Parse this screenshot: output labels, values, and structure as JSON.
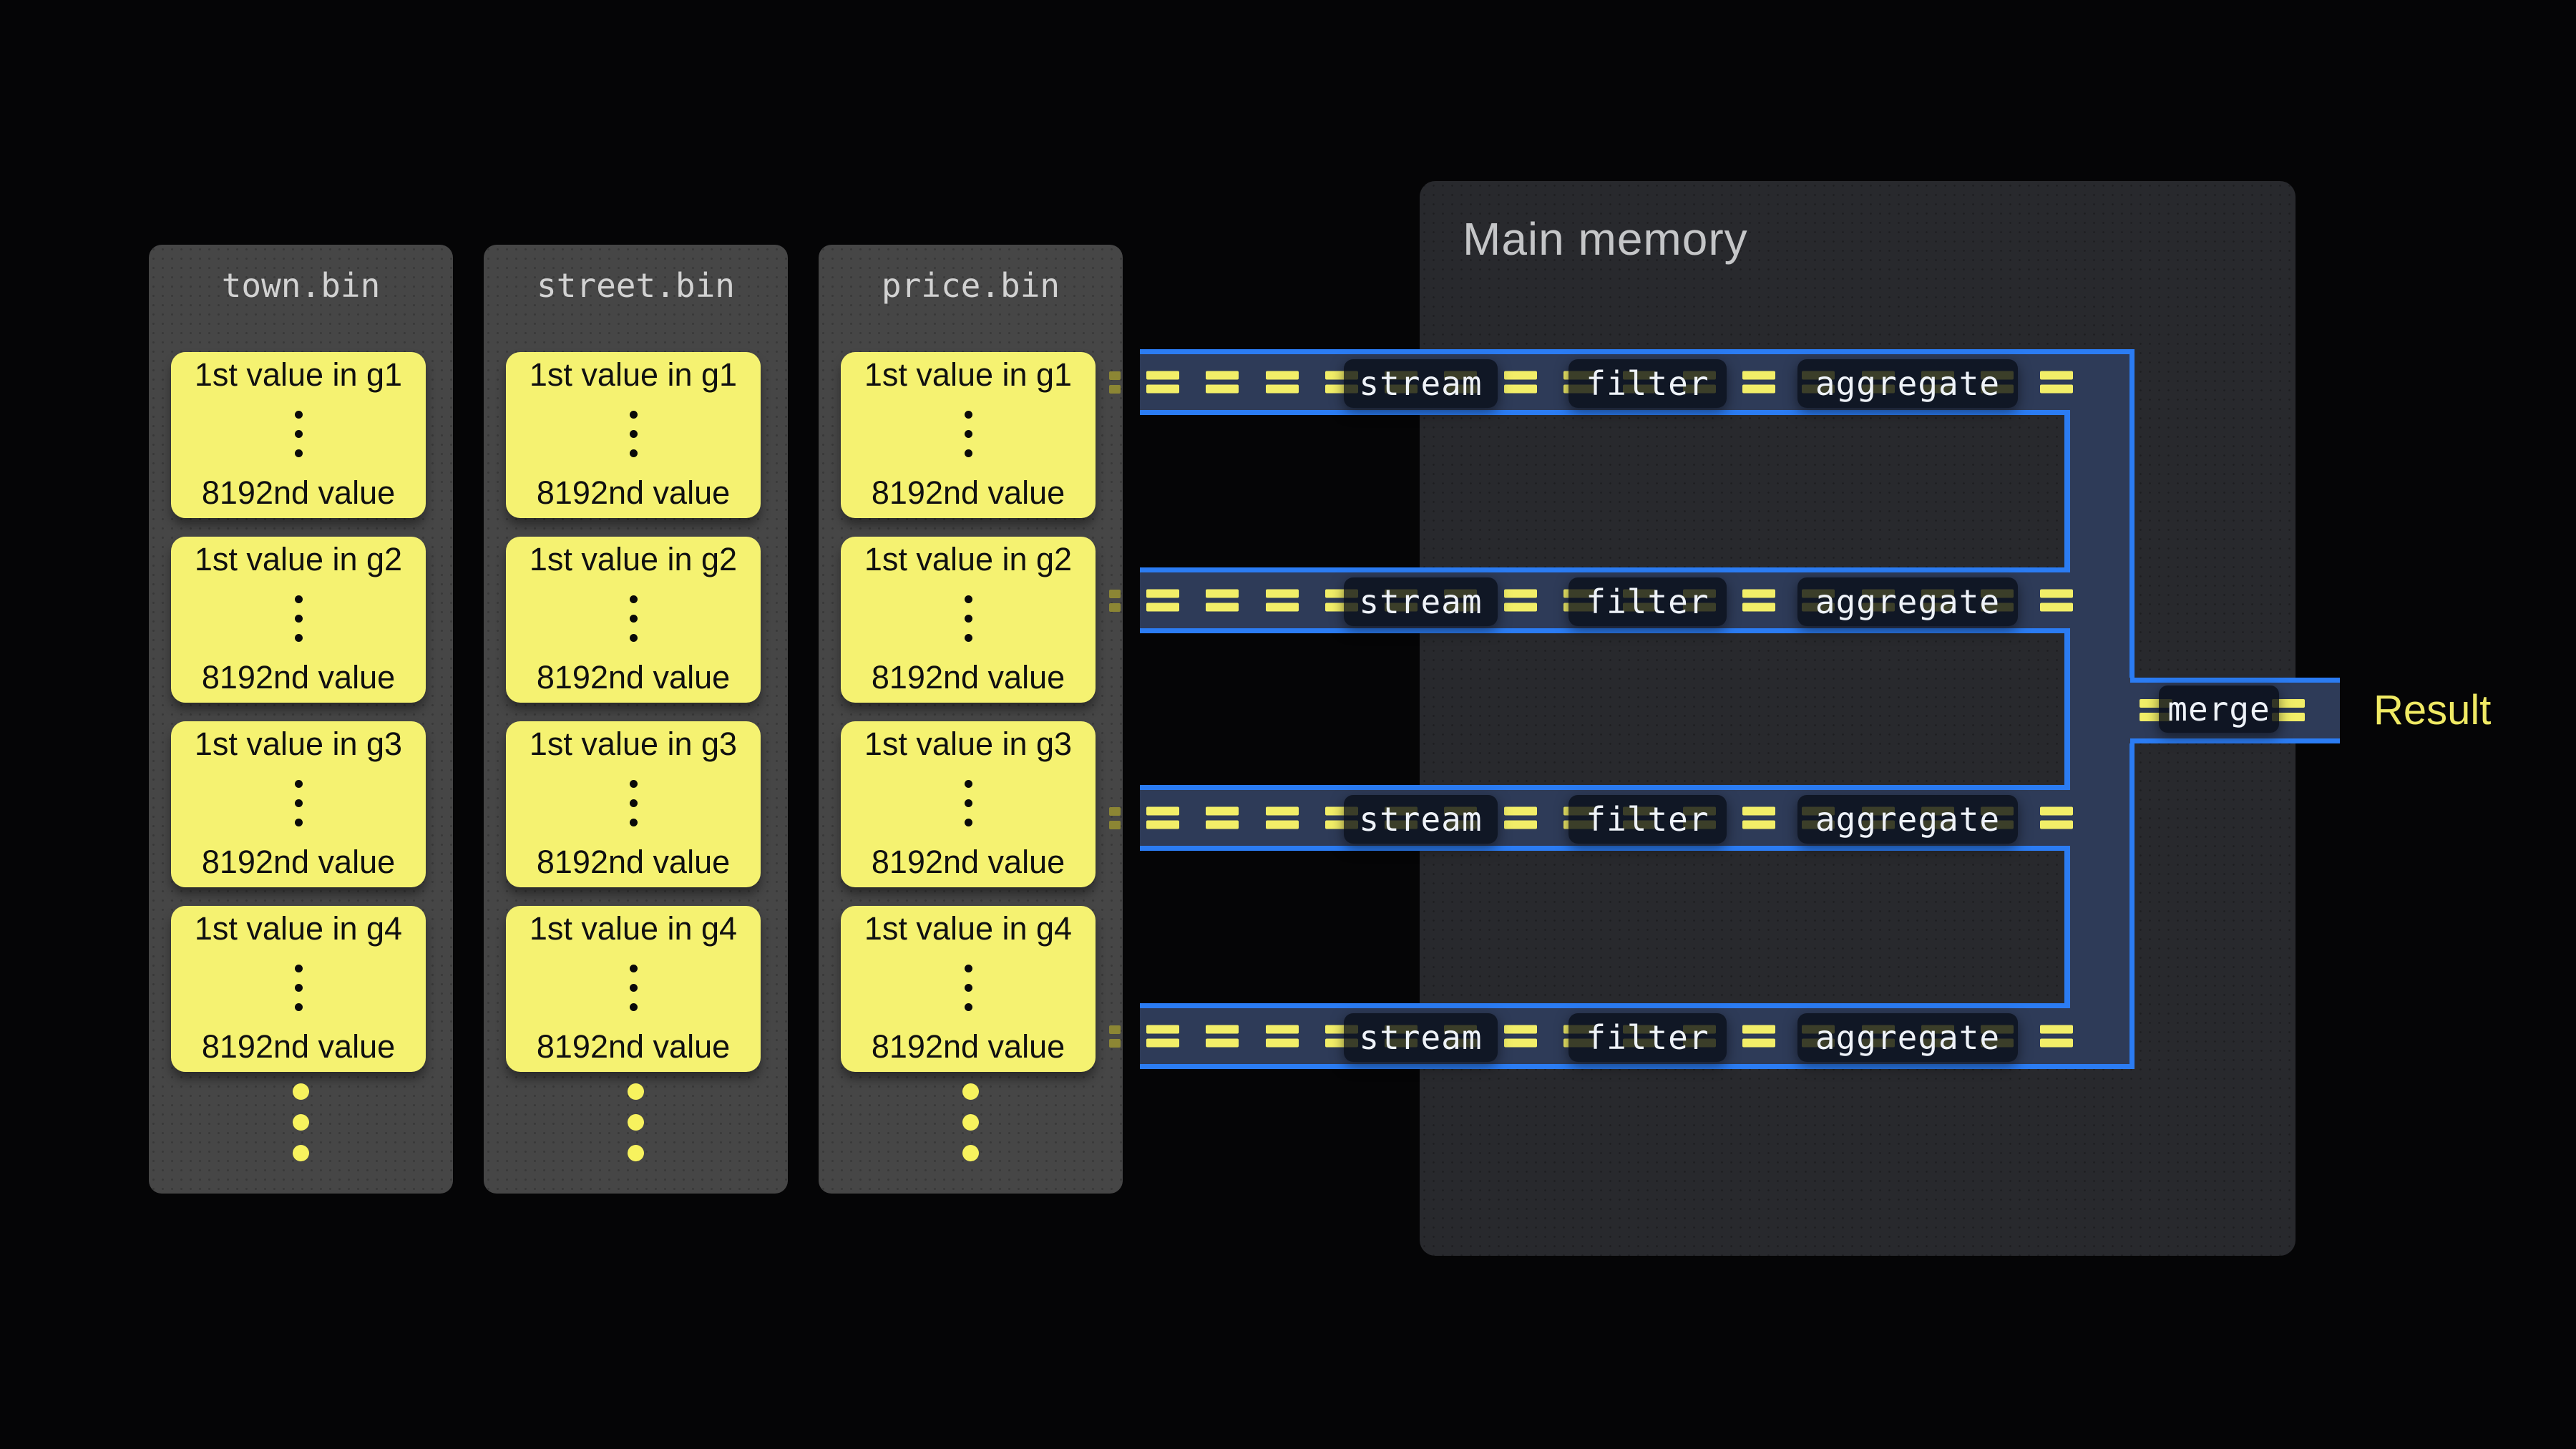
{
  "diagram": {
    "equals_per_lane": 16,
    "cell_dots": 3,
    "overflow_dots": 3
  },
  "files": [
    {
      "name": "town.bin",
      "groups": [
        {
          "first": "1st value in g1",
          "last": "8192nd value"
        },
        {
          "first": "1st value in g2",
          "last": "8192nd value"
        },
        {
          "first": "1st value in g3",
          "last": "8192nd value"
        },
        {
          "first": "1st value in g4",
          "last": "8192nd value"
        }
      ]
    },
    {
      "name": "street.bin",
      "groups": [
        {
          "first": "1st value in g1",
          "last": "8192nd value"
        },
        {
          "first": "1st value in g2",
          "last": "8192nd value"
        },
        {
          "first": "1st value in g3",
          "last": "8192nd value"
        },
        {
          "first": "1st value in g4",
          "last": "8192nd value"
        }
      ]
    },
    {
      "name": "price.bin",
      "groups": [
        {
          "first": "1st value in g1",
          "last": "8192nd value"
        },
        {
          "first": "1st value in g2",
          "last": "8192nd value"
        },
        {
          "first": "1st value in g3",
          "last": "8192nd value"
        },
        {
          "first": "1st value in g4",
          "last": "8192nd value"
        }
      ]
    }
  ],
  "main_memory": {
    "title": "Main memory"
  },
  "pipelines": [
    {
      "stages": [
        "stream",
        "filter",
        "aggregate"
      ]
    },
    {
      "stages": [
        "stream",
        "filter",
        "aggregate"
      ]
    },
    {
      "stages": [
        "stream",
        "filter",
        "aggregate"
      ]
    },
    {
      "stages": [
        "stream",
        "filter",
        "aggregate"
      ]
    }
  ],
  "merge": {
    "label": "merge"
  },
  "result": {
    "label": "Result"
  },
  "colors": {
    "accent_blue": "#2b7cf3",
    "lane_navy": "#2e3b58",
    "data_yellow": "#f2ee68",
    "dim_olive": "#8c8634",
    "cell_yellow": "#f5f271",
    "file_panel_gray": "#464646",
    "memory_gray": "#28292d",
    "chip_dark": "#0d1522",
    "title_gray": "#c5c6c8",
    "result_yellow": "#f0ea64"
  }
}
